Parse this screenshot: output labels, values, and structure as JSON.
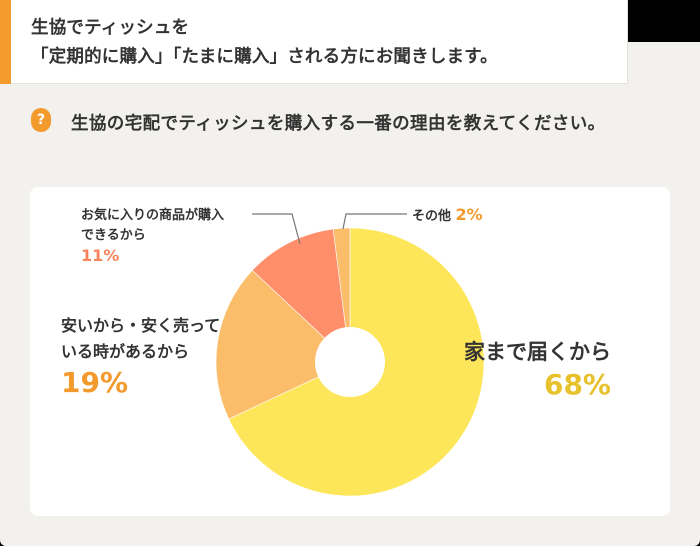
{
  "header": {
    "title_line1": "生協でティッシュを",
    "title_line2": "「定期的に購入」「たまに購入」される方にお聞きします。",
    "accent_color": "#f39a2d"
  },
  "question": {
    "icon": "question-mark-icon",
    "icon_glyph": "?",
    "text": "生協の宅配でティッシュを購入する一番の理由を教えてください。"
  },
  "labels": {
    "home_delivery": {
      "text": "家まで届くから",
      "pct": "68%",
      "pct_color": "#e8c22c"
    },
    "cheap": {
      "line1": "安いから・安く売って",
      "line2": "いる時があるから",
      "pct": "19%",
      "pct_color": "#f39a2d"
    },
    "favorite": {
      "line1": "お気に入りの商品が購入",
      "line2": "できるから",
      "pct": "11%",
      "pct_color": "#f5845a"
    },
    "other": {
      "text": "その他",
      "pct": "2%",
      "pct_color": "#f39a2d"
    }
  },
  "chart_data": {
    "type": "pie",
    "title": "生協の宅配でティッシュを購入する一番の理由を教えてください。",
    "subtitle": "生協でティッシュを「定期的に購入」「たまに購入」される方にお聞きします。",
    "donut": true,
    "start_angle": "12 o'clock, clockwise",
    "categories": [
      "家まで届くから",
      "安いから・安く売っている時があるから",
      "お気に入りの商品が購入できるから",
      "その他"
    ],
    "values": [
      68,
      19,
      11,
      2
    ],
    "unit": "%",
    "colors": [
      "#fee65a",
      "#fbbd6a",
      "#fe8f6a",
      "#fbbd6a"
    ]
  }
}
